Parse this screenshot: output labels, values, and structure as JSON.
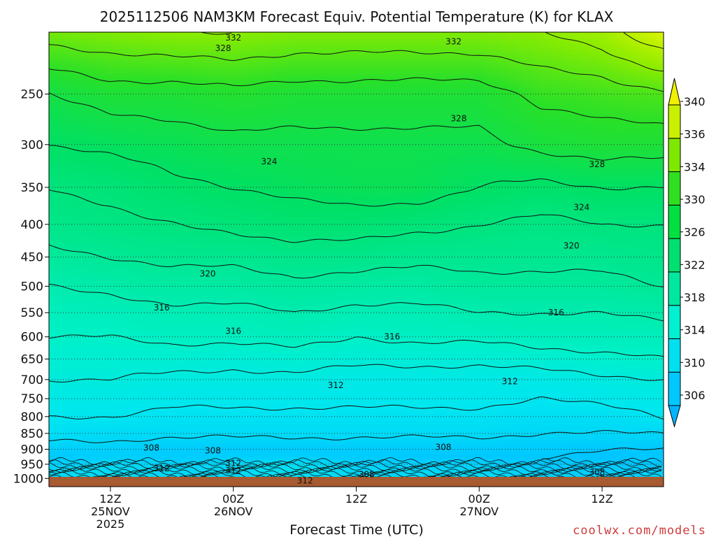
{
  "chart_data": {
    "type": "heatmap",
    "title": "2025112506 NAM3KM Forecast Equiv. Potential Temperature (K) for KLAX",
    "xlabel": "Forecast Time (UTC)",
    "ylabel": "",
    "watermark": "coolwx.com/models",
    "y_axis": {
      "scale": "log-pressure",
      "range": [
        1030,
        200
      ],
      "ticks": [
        250,
        300,
        350,
        400,
        450,
        500,
        550,
        600,
        650,
        700,
        750,
        800,
        850,
        900,
        950,
        1000
      ],
      "tick_labels": [
        "250",
        "300",
        "350",
        "400",
        "450",
        "500",
        "550",
        "600",
        "650",
        "700",
        "750",
        "800",
        "850",
        "900",
        "950",
        "1000"
      ]
    },
    "x_axis": {
      "range_hours": [
        0,
        60
      ],
      "ticks": [
        {
          "hour": 6,
          "lines": [
            "12Z",
            "25NOV",
            "2025"
          ]
        },
        {
          "hour": 18,
          "lines": [
            "00Z",
            "26NOV"
          ]
        },
        {
          "hour": 30,
          "lines": [
            "12Z"
          ]
        },
        {
          "hour": 42,
          "lines": [
            "00Z",
            "27NOV"
          ]
        },
        {
          "hour": 54,
          "lines": [
            "12Z"
          ]
        }
      ]
    },
    "grid": true,
    "colorbar": {
      "position": "right",
      "labels": [
        "306",
        "310",
        "314",
        "318",
        "322",
        "326",
        "330",
        "334",
        "336",
        "340"
      ],
      "colors": [
        "#00b4ff",
        "#00c8ff",
        "#00e0f0",
        "#00f0d0",
        "#00e8a0",
        "#00e070",
        "#00e040",
        "#30e020",
        "#7ee800",
        "#c8f000",
        "#f0f000"
      ]
    },
    "profiles": {
      "pressures": [
        1000,
        975,
        950,
        925,
        900,
        875,
        850,
        800,
        750,
        700,
        650,
        600,
        550,
        500,
        450,
        400,
        350,
        300,
        250,
        200
      ],
      "hours": [
        0,
        6,
        12,
        18,
        24,
        30,
        36,
        42,
        48,
        54,
        60
      ],
      "values": [
        [
          310,
          311,
          310,
          310,
          310.5,
          310,
          310,
          310.5,
          309.5,
          309,
          310
        ],
        [
          310,
          311,
          310,
          310.5,
          311.5,
          310,
          310,
          310,
          309,
          308.5,
          309
        ],
        [
          309,
          310,
          309.5,
          310,
          311,
          309,
          309,
          309,
          308,
          308,
          308
        ],
        [
          308,
          309,
          308.5,
          309,
          309,
          308.5,
          308,
          308,
          308,
          307.5,
          308
        ],
        [
          309,
          309,
          308.5,
          308.5,
          308.5,
          308.5,
          308.5,
          308.5,
          308.5,
          308,
          308
        ],
        [
          310,
          310,
          309.5,
          309.5,
          309.5,
          309.5,
          309.5,
          309.5,
          309,
          309,
          309
        ],
        [
          311,
          310.5,
          310.5,
          310.5,
          310.5,
          310.5,
          310.5,
          310.5,
          310,
          310,
          310
        ],
        [
          312,
          312,
          311.5,
          311.5,
          311.5,
          311.5,
          311.5,
          311.5,
          311,
          311,
          312
        ],
        [
          313,
          313,
          312.5,
          312.5,
          312.5,
          312.5,
          312.5,
          312.5,
          312,
          312.5,
          313
        ],
        [
          314,
          314,
          313.5,
          313.5,
          313.5,
          313,
          313,
          313,
          313,
          313.5,
          314
        ],
        [
          315,
          315,
          315,
          314.5,
          315,
          314.5,
          314.5,
          314.5,
          315,
          315.5,
          316
        ],
        [
          316,
          316,
          316.5,
          316.5,
          317,
          316,
          316.5,
          316.5,
          317,
          317,
          317
        ],
        [
          317,
          317,
          317.5,
          317.5,
          318,
          317.5,
          317.5,
          318,
          318,
          318,
          318.5
        ],
        [
          318,
          318.5,
          319,
          319,
          319.5,
          319,
          319,
          319.5,
          319.5,
          319.5,
          320
        ],
        [
          319.5,
          320,
          320.5,
          320.5,
          321,
          321,
          320.5,
          320.5,
          320.5,
          320.5,
          321
        ],
        [
          321,
          321.5,
          322,
          322.5,
          323,
          323,
          322.5,
          322,
          321.5,
          322,
          322
        ],
        [
          322,
          322.5,
          323.5,
          324,
          324.5,
          325,
          325,
          324,
          323.5,
          324,
          324
        ],
        [
          324,
          324.5,
          325,
          325.5,
          325.5,
          325.5,
          325.5,
          325.5,
          326.5,
          327,
          327
        ],
        [
          326,
          327,
          327,
          327.5,
          327,
          327,
          327,
          327,
          328.5,
          329,
          329.5
        ],
        [
          331,
          331.5,
          332,
          332,
          331.5,
          331.5,
          331.5,
          331.5,
          332,
          333,
          336
        ]
      ]
    },
    "contour_labels": [
      {
        "text": "332",
        "p": 204,
        "h": 18
      },
      {
        "text": "332",
        "p": 207,
        "h": 39.5
      },
      {
        "text": "328",
        "p": 212,
        "h": 17
      },
      {
        "text": "328",
        "p": 273,
        "h": 40
      },
      {
        "text": "328",
        "p": 322,
        "h": 53.5
      },
      {
        "text": "324",
        "p": 319,
        "h": 21.5
      },
      {
        "text": "324",
        "p": 376,
        "h": 52
      },
      {
        "text": "320",
        "p": 478,
        "h": 15.5
      },
      {
        "text": "320",
        "p": 432,
        "h": 51
      },
      {
        "text": "316",
        "p": 540,
        "h": 11
      },
      {
        "text": "316",
        "p": 588,
        "h": 18
      },
      {
        "text": "316",
        "p": 600,
        "h": 33.5
      },
      {
        "text": "316",
        "p": 550,
        "h": 49.5
      },
      {
        "text": "312",
        "p": 715,
        "h": 28
      },
      {
        "text": "312",
        "p": 705,
        "h": 45
      },
      {
        "text": "308",
        "p": 895,
        "h": 10
      },
      {
        "text": "308",
        "p": 904,
        "h": 16
      },
      {
        "text": "308",
        "p": 893,
        "h": 38.5
      },
      {
        "text": "312",
        "p": 947,
        "h": 18
      },
      {
        "text": "312",
        "p": 965,
        "h": 11
      },
      {
        "text": "312",
        "p": 972,
        "h": 18
      },
      {
        "text": "308",
        "p": 985,
        "h": 31
      },
      {
        "text": "308",
        "p": 978,
        "h": 53.5
      },
      {
        "text": "312",
        "p": 1008,
        "h": 25
      }
    ]
  }
}
